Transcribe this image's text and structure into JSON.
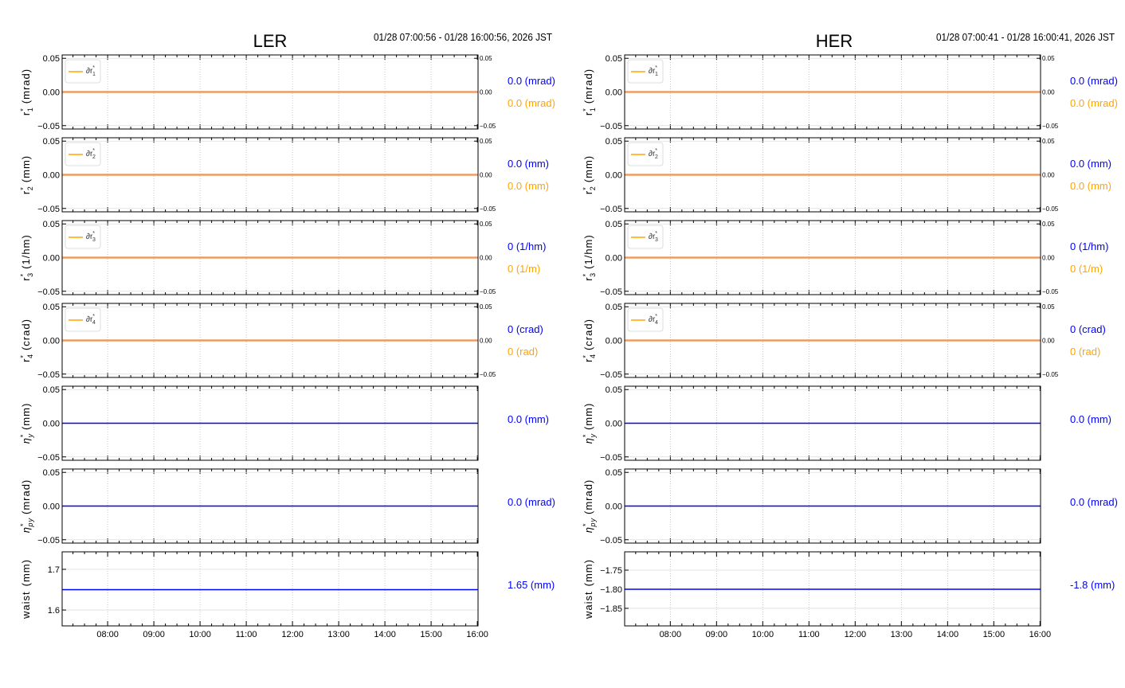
{
  "colors": {
    "primary": "#0000ff",
    "secondary": "#ffa500",
    "reference": "#e8a0a0",
    "grid": "#bbbbbb"
  },
  "chart_data": [
    {
      "type": "line",
      "title": "LER",
      "time_range": "01/28 07:00:56 - 01/28 16:00:56, 2026 JST",
      "x_range": [
        "07:00:56",
        "16:00:56"
      ],
      "x_ticks": [
        "08:00",
        "09:00",
        "10:00",
        "11:00",
        "12:00",
        "13:00",
        "14:00",
        "15:00",
        "16:00"
      ],
      "grid": true,
      "panels": [
        {
          "ylabel": {
            "base": "r",
            "sup": "*",
            "sub": "1",
            "unit": "(mrad)"
          },
          "ylim": [
            -0.055,
            0.055
          ],
          "yticks": [
            "0.05",
            "0.00",
            "−0.05"
          ],
          "ytick_values": [
            0.05,
            0,
            -0.05
          ],
          "right_ticks": [
            "0.05",
            "0.00",
            "−0.05"
          ],
          "legend": {
            "base": "∂r",
            "sup": "*",
            "sub": "1"
          },
          "legend_location": "upper-left",
          "series": [
            {
              "color": "secondary",
              "value": 0.0
            },
            {
              "color": "reference",
              "value": 0.0
            }
          ],
          "values": [
            {
              "text": "0.0 (mrad)",
              "color": "primary"
            },
            {
              "text": "0.0 (mrad)",
              "color": "secondary"
            }
          ]
        },
        {
          "ylabel": {
            "base": "r",
            "sup": "*",
            "sub": "2",
            "unit": "(mm)"
          },
          "ylim": [
            -0.055,
            0.055
          ],
          "yticks": [
            "0.05",
            "0.00",
            "−0.05"
          ],
          "ytick_values": [
            0.05,
            0,
            -0.05
          ],
          "right_ticks": [
            "0.05",
            "0.00",
            "−0.05"
          ],
          "legend": {
            "base": "∂r",
            "sup": "*",
            "sub": "2"
          },
          "legend_location": "upper-left",
          "series": [
            {
              "color": "secondary",
              "value": 0.0
            },
            {
              "color": "reference",
              "value": 0.0
            }
          ],
          "values": [
            {
              "text": "0.0 (mm)",
              "color": "primary"
            },
            {
              "text": "0.0 (mm)",
              "color": "secondary"
            }
          ]
        },
        {
          "ylabel": {
            "base": "r",
            "sup": "*",
            "sub": "3",
            "unit": "(1/hm)"
          },
          "ylim": [
            -0.055,
            0.055
          ],
          "yticks": [
            "0.05",
            "0.00",
            "−0.05"
          ],
          "ytick_values": [
            0.05,
            0,
            -0.05
          ],
          "right_ticks": [
            "0.05",
            "0.00",
            "−0.05"
          ],
          "legend": {
            "base": "∂r",
            "sup": "*",
            "sub": "3"
          },
          "legend_location": "upper-left",
          "series": [
            {
              "color": "secondary",
              "value": 0.0
            },
            {
              "color": "reference",
              "value": 0.0
            }
          ],
          "values": [
            {
              "text": "0 (1/hm)",
              "color": "primary"
            },
            {
              "text": "0 (1/m)",
              "color": "secondary"
            }
          ]
        },
        {
          "ylabel": {
            "base": "r",
            "sup": "*",
            "sub": "4",
            "unit": "(crad)"
          },
          "ylim": [
            -0.055,
            0.055
          ],
          "yticks": [
            "0.05",
            "0.00",
            "−0.05"
          ],
          "ytick_values": [
            0.05,
            0,
            -0.05
          ],
          "right_ticks": [
            "0.05",
            "0.00",
            "−0.05"
          ],
          "legend": {
            "base": "∂r",
            "sup": "*",
            "sub": "4"
          },
          "legend_location": "upper-left",
          "series": [
            {
              "color": "secondary",
              "value": 0.0
            },
            {
              "color": "reference",
              "value": 0.0
            }
          ],
          "values": [
            {
              "text": "0 (crad)",
              "color": "primary"
            },
            {
              "text": "0 (rad)",
              "color": "secondary"
            }
          ]
        },
        {
          "ylabel": {
            "base": "η",
            "sup": "*",
            "sub": "y",
            "unit": "(mm)"
          },
          "ylim": [
            -0.055,
            0.055
          ],
          "yticks": [
            "0.05",
            "0.00",
            "−0.05"
          ],
          "ytick_values": [
            0.05,
            0,
            -0.05
          ],
          "series": [
            {
              "color": "primary",
              "value": 0.0
            }
          ],
          "values": [
            {
              "text": "0.0 (mm)",
              "color": "primary"
            }
          ]
        },
        {
          "ylabel": {
            "base": "η",
            "sup": "*",
            "sub": "py",
            "unit": "(mrad)"
          },
          "ylim": [
            -0.055,
            0.055
          ],
          "yticks": [
            "0.05",
            "0.00",
            "−0.05"
          ],
          "ytick_values": [
            0.05,
            0,
            -0.05
          ],
          "series": [
            {
              "color": "primary",
              "value": 0.0
            }
          ],
          "values": [
            {
              "text": "0.0 (mrad)",
              "color": "primary"
            }
          ]
        },
        {
          "ylabel": {
            "base": "waist",
            "unit": "(mm)"
          },
          "ylim": [
            1.561,
            1.743
          ],
          "yticks": [
            "1.7",
            "1.6"
          ],
          "ytick_values": [
            1.7,
            1.6
          ],
          "series": [
            {
              "color": "primary",
              "value": 1.65
            }
          ],
          "values": [
            {
              "text": "1.65 (mm)",
              "color": "primary"
            }
          ],
          "show_xticks": true
        }
      ]
    },
    {
      "type": "line",
      "title": "HER",
      "time_range": "01/28 07:00:41 - 01/28 16:00:41, 2026 JST",
      "x_range": [
        "07:00:41",
        "16:00:41"
      ],
      "x_ticks": [
        "08:00",
        "09:00",
        "10:00",
        "11:00",
        "12:00",
        "13:00",
        "14:00",
        "15:00",
        "16:00"
      ],
      "grid": true,
      "panels": [
        {
          "ylabel": {
            "base": "r",
            "sup": "*",
            "sub": "1",
            "unit": "(mrad)"
          },
          "ylim": [
            -0.055,
            0.055
          ],
          "yticks": [
            "0.05",
            "0.00",
            "−0.05"
          ],
          "ytick_values": [
            0.05,
            0,
            -0.05
          ],
          "right_ticks": [
            "0.05",
            "0.00",
            "−0.05"
          ],
          "legend": {
            "base": "∂r",
            "sup": "*",
            "sub": "1"
          },
          "legend_location": "upper-left",
          "series": [
            {
              "color": "secondary",
              "value": 0.0
            },
            {
              "color": "reference",
              "value": 0.0
            }
          ],
          "values": [
            {
              "text": "0.0 (mrad)",
              "color": "primary"
            },
            {
              "text": "0.0 (mrad)",
              "color": "secondary"
            }
          ]
        },
        {
          "ylabel": {
            "base": "r",
            "sup": "*",
            "sub": "2",
            "unit": "(mm)"
          },
          "ylim": [
            -0.055,
            0.055
          ],
          "yticks": [
            "0.05",
            "0.00",
            "−0.05"
          ],
          "ytick_values": [
            0.05,
            0,
            -0.05
          ],
          "right_ticks": [
            "0.05",
            "0.00",
            "−0.05"
          ],
          "legend": {
            "base": "∂r",
            "sup": "*",
            "sub": "2"
          },
          "legend_location": "upper-left",
          "series": [
            {
              "color": "secondary",
              "value": 0.0
            },
            {
              "color": "reference",
              "value": 0.0
            }
          ],
          "values": [
            {
              "text": "0.0 (mm)",
              "color": "primary"
            },
            {
              "text": "0.0 (mm)",
              "color": "secondary"
            }
          ]
        },
        {
          "ylabel": {
            "base": "r",
            "sup": "*",
            "sub": "3",
            "unit": "(1/hm)"
          },
          "ylim": [
            -0.055,
            0.055
          ],
          "yticks": [
            "0.05",
            "0.00",
            "−0.05"
          ],
          "ytick_values": [
            0.05,
            0,
            -0.05
          ],
          "right_ticks": [
            "0.05",
            "0.00",
            "−0.05"
          ],
          "legend": {
            "base": "∂r",
            "sup": "*",
            "sub": "3"
          },
          "legend_location": "upper-left",
          "series": [
            {
              "color": "secondary",
              "value": 0.0
            },
            {
              "color": "reference",
              "value": 0.0
            }
          ],
          "values": [
            {
              "text": "0 (1/hm)",
              "color": "primary"
            },
            {
              "text": "0 (1/m)",
              "color": "secondary"
            }
          ]
        },
        {
          "ylabel": {
            "base": "r",
            "sup": "*",
            "sub": "4",
            "unit": "(crad)"
          },
          "ylim": [
            -0.055,
            0.055
          ],
          "yticks": [
            "0.05",
            "0.00",
            "−0.05"
          ],
          "ytick_values": [
            0.05,
            0,
            -0.05
          ],
          "right_ticks": [
            "0.05",
            "0.00",
            "−0.05"
          ],
          "legend": {
            "base": "∂r",
            "sup": "*",
            "sub": "4"
          },
          "legend_location": "upper-left",
          "series": [
            {
              "color": "secondary",
              "value": 0.0
            },
            {
              "color": "reference",
              "value": 0.0
            }
          ],
          "values": [
            {
              "text": "0 (crad)",
              "color": "primary"
            },
            {
              "text": "0 (rad)",
              "color": "secondary"
            }
          ]
        },
        {
          "ylabel": {
            "base": "η",
            "sup": "*",
            "sub": "y",
            "unit": "(mm)"
          },
          "ylim": [
            -0.055,
            0.055
          ],
          "yticks": [
            "0.05",
            "0.00",
            "−0.05"
          ],
          "ytick_values": [
            0.05,
            0,
            -0.05
          ],
          "series": [
            {
              "color": "primary",
              "value": 0.0
            }
          ],
          "values": [
            {
              "text": "0.0 (mm)",
              "color": "primary"
            }
          ]
        },
        {
          "ylabel": {
            "base": "η",
            "sup": "*",
            "sub": "py",
            "unit": "(mrad)"
          },
          "ylim": [
            -0.055,
            0.055
          ],
          "yticks": [
            "0.05",
            "0.00",
            "−0.05"
          ],
          "ytick_values": [
            0.05,
            0,
            -0.05
          ],
          "series": [
            {
              "color": "primary",
              "value": 0.0
            }
          ],
          "values": [
            {
              "text": "0.0 (mrad)",
              "color": "primary"
            }
          ]
        },
        {
          "ylabel": {
            "base": "waist",
            "unit": "(mm)"
          },
          "ylim": [
            -1.896,
            -1.702
          ],
          "yticks": [
            "−1.75",
            "−1.80",
            "−1.85"
          ],
          "ytick_values": [
            -1.75,
            -1.8,
            -1.85
          ],
          "series": [
            {
              "color": "primary",
              "value": -1.8
            }
          ],
          "values": [
            {
              "text": "-1.8 (mm)",
              "color": "primary"
            }
          ],
          "show_xticks": true
        }
      ]
    }
  ]
}
